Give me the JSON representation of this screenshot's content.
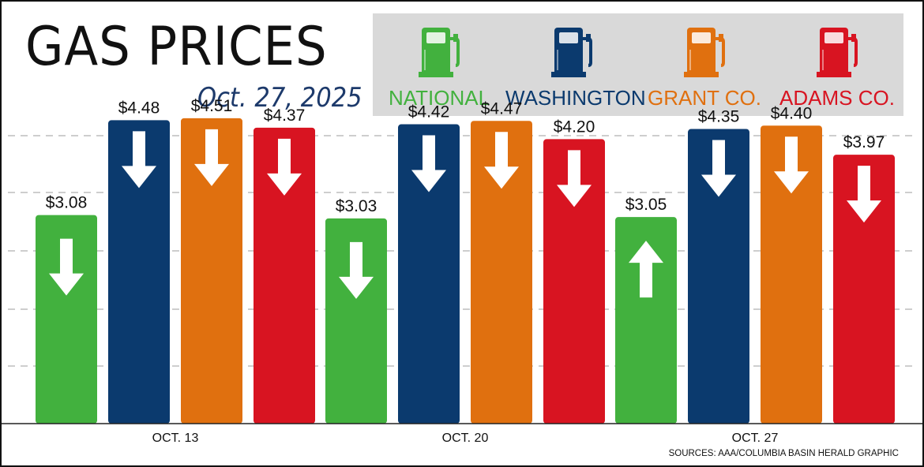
{
  "header": {
    "title": "GAS PRICES",
    "date": "Oct. 27, 2025"
  },
  "legend": [
    {
      "label": "NATIONAL",
      "color": "#42b13e",
      "icon": "gas-pump-icon"
    },
    {
      "label": "WASHINGTON",
      "color": "#0b3a6e",
      "icon": "gas-pump-icon"
    },
    {
      "label": "GRANT CO.",
      "color": "#e0700f",
      "icon": "gas-pump-icon"
    },
    {
      "label": "ADAMS CO.",
      "color": "#d81421",
      "icon": "gas-pump-icon"
    }
  ],
  "chart_data": {
    "type": "bar",
    "categories": [
      "OCT. 13",
      "OCT. 20",
      "OCT. 27"
    ],
    "series": [
      {
        "name": "NATIONAL",
        "color": "#42b13e",
        "values": [
          3.08,
          3.03,
          3.05
        ],
        "labels": [
          "$3.08",
          "$3.03",
          "$3.05"
        ],
        "trend": [
          "down",
          "down",
          "up"
        ]
      },
      {
        "name": "WASHINGTON",
        "color": "#0b3a6e",
        "values": [
          4.48,
          4.42,
          4.35
        ],
        "labels": [
          "$4.48",
          "$4.42",
          "$4.35"
        ],
        "trend": [
          "down",
          "down",
          "down"
        ]
      },
      {
        "name": "GRANT CO.",
        "color": "#e0700f",
        "values": [
          4.51,
          4.47,
          4.4
        ],
        "labels": [
          "$4.51",
          "$4.47",
          "$4.40"
        ],
        "trend": [
          "down",
          "down",
          "down"
        ]
      },
      {
        "name": "ADAMS CO.",
        "color": "#d81421",
        "values": [
          4.37,
          4.2,
          3.97
        ],
        "labels": [
          "$4.37",
          "$4.20",
          "$3.97"
        ],
        "trend": [
          "down",
          "down",
          "down"
        ]
      }
    ],
    "ylim": [
      0,
      5.3
    ],
    "grid": true,
    "legend_position": "top-right"
  },
  "footer": {
    "source": "SOURCES: AAA/COLUMBIA BASIN HERALD GRAPHIC"
  }
}
